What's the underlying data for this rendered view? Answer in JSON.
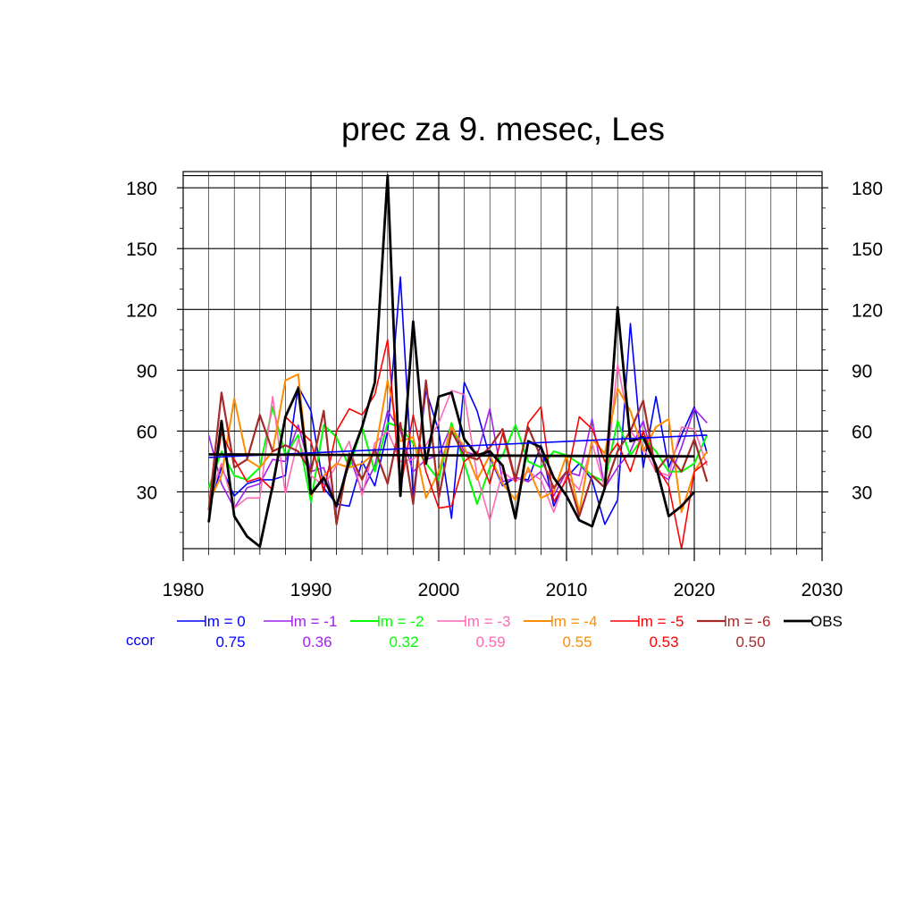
{
  "chart_data": {
    "type": "line",
    "title": "prec za 9. mesec, Les",
    "xlabel": "",
    "ylabel": "",
    "xlim": [
      1980,
      2030
    ],
    "ylim": [
      2,
      188
    ],
    "x_ticks": [
      1980,
      1990,
      2000,
      2010,
      2020,
      2030
    ],
    "y_ticks": [
      30,
      60,
      90,
      120,
      150,
      180
    ],
    "grid": true,
    "legend_position": "bottom",
    "correlation_label": "ccor",
    "correlation_label_color": "#0000ff",
    "x": [
      1982,
      1983,
      1984,
      1985,
      1986,
      1987,
      1988,
      1989,
      1990,
      1991,
      1992,
      1993,
      1994,
      1995,
      1996,
      1997,
      1998,
      1999,
      2000,
      2001,
      2002,
      2003,
      2004,
      2005,
      2006,
      2007,
      2008,
      2009,
      2010,
      2011,
      2012,
      2013,
      2014,
      2015,
      2016,
      2017,
      2018,
      2019,
      2020,
      2021
    ],
    "series": [
      {
        "name": "lm = 0",
        "color": "#0000ff",
        "width": 1.6,
        "correlation": "0.75",
        "values": [
          22,
          42,
          28,
          34,
          36,
          36,
          38,
          82,
          70,
          32,
          24,
          23,
          45,
          33,
          60,
          136,
          28,
          80,
          60,
          17,
          84,
          70,
          47,
          33,
          37,
          36,
          53,
          23,
          37,
          44,
          36,
          14,
          26,
          113,
          42,
          77,
          42,
          58,
          72,
          49
        ]
      },
      {
        "name": "lm = -1",
        "color": "#a020f0",
        "width": 1.6,
        "correlation": "0.36",
        "values": [
          58,
          34,
          22,
          32,
          34,
          46,
          45,
          63,
          40,
          42,
          22,
          48,
          30,
          43,
          70,
          60,
          40,
          46,
          48,
          63,
          50,
          48,
          71,
          35,
          37,
          35,
          40,
          28,
          40,
          38,
          66,
          32,
          42,
          50,
          65,
          40,
          36,
          52,
          71,
          64
        ]
      },
      {
        "name": "lm = -2",
        "color": "#00ff00",
        "width": 2.0,
        "correlation": "0.32",
        "values": [
          32,
          50,
          38,
          36,
          42,
          72,
          48,
          58,
          25,
          63,
          57,
          42,
          62,
          40,
          64,
          62,
          54,
          44,
          36,
          64,
          44,
          24,
          42,
          48,
          63,
          45,
          42,
          50,
          48,
          44,
          38,
          35,
          65,
          48,
          57,
          50,
          40,
          40,
          44,
          58
        ]
      },
      {
        "name": "lm = -3",
        "color": "#ff69b4",
        "width": 1.6,
        "correlation": "0.59",
        "values": [
          26,
          44,
          22,
          27,
          27,
          77,
          29,
          56,
          38,
          33,
          43,
          55,
          28,
          54,
          60,
          45,
          46,
          53,
          64,
          80,
          78,
          38,
          16,
          40,
          35,
          40,
          36,
          20,
          38,
          31,
          54,
          32,
          93,
          60,
          52,
          40,
          38,
          62,
          61,
          43
        ]
      },
      {
        "name": "lm = -4",
        "color": "#ff8c00",
        "width": 2.0,
        "correlation": "0.55",
        "values": [
          25,
          38,
          76,
          46,
          42,
          50,
          85,
          88,
          28,
          38,
          44,
          42,
          44,
          49,
          85,
          55,
          57,
          27,
          40,
          62,
          52,
          36,
          48,
          34,
          26,
          42,
          27,
          30,
          48,
          20,
          56,
          49,
          81,
          70,
          50,
          62,
          66,
          20,
          40,
          50
        ]
      },
      {
        "name": "lm = -5",
        "color": "#ff0000",
        "width": 1.6,
        "correlation": "0.53",
        "values": [
          21,
          59,
          46,
          35,
          37,
          31,
          67,
          61,
          55,
          30,
          60,
          71,
          68,
          78,
          105,
          31,
          68,
          40,
          22,
          23,
          45,
          50,
          34,
          59,
          35,
          64,
          72,
          25,
          36,
          67,
          61,
          45,
          54,
          40,
          60,
          43,
          33,
          2,
          40,
          45
        ]
      },
      {
        "name": "lm = -6",
        "color": "#a52a2a",
        "width": 2.2,
        "correlation": "0.50",
        "values": [
          21,
          79,
          42,
          46,
          68,
          50,
          53,
          50,
          40,
          70,
          14,
          49,
          36,
          51,
          34,
          64,
          24,
          85,
          27,
          60,
          48,
          46,
          52,
          61,
          36,
          62,
          47,
          32,
          40,
          18,
          38,
          32,
          50,
          60,
          75,
          40,
          48,
          40,
          56,
          35
        ]
      },
      {
        "name": "OBS",
        "color": "#000000",
        "width": 2.8,
        "correlation": "",
        "values": [
          15,
          65,
          18,
          8,
          3,
          33,
          67,
          81,
          29,
          37,
          23,
          45,
          62,
          84,
          186,
          28,
          114,
          44,
          77,
          79,
          56,
          48,
          50,
          43,
          17,
          55,
          52,
          37,
          28,
          16,
          13,
          32,
          121,
          55,
          57,
          43,
          18,
          23,
          30,
          null
        ]
      }
    ],
    "trend_lines": [
      {
        "series": "lm = 0",
        "color": "#0000ff",
        "width": 1.6,
        "x": [
          1982,
          2021
        ],
        "y": [
          47,
          58
        ]
      },
      {
        "series": "OBS",
        "color": "#000000",
        "width": 2.8,
        "x": [
          1982,
          2020
        ],
        "y": [
          48.5,
          47.5
        ]
      }
    ]
  }
}
